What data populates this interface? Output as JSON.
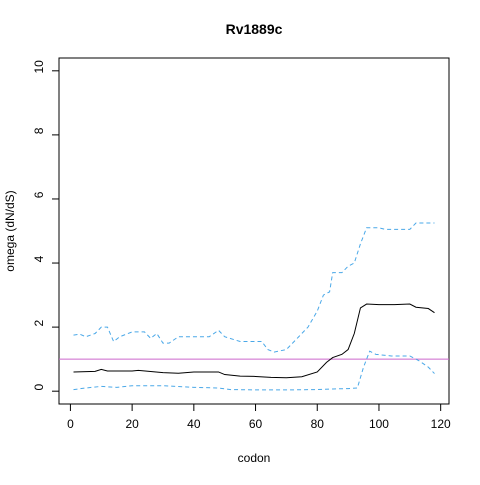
{
  "chart_data": {
    "type": "line",
    "title": "Rv1889c",
    "xlabel": "codon",
    "ylabel": "omega (dN/dS)",
    "xlim": [
      -3.7,
      122.7
    ],
    "ylim": [
      -0.4,
      10.4
    ],
    "xticks": [
      0,
      20,
      40,
      60,
      80,
      100,
      120
    ],
    "yticks": [
      0,
      2,
      4,
      6,
      8,
      10
    ],
    "hline": 1,
    "hline_color": "#cc66cc",
    "series": [
      {
        "color": "#000000",
        "dashed": false,
        "x": [
          1,
          8,
          10,
          12,
          20,
          22,
          30,
          35,
          40,
          48,
          50,
          55,
          60,
          65,
          70,
          75,
          80,
          83,
          85,
          88,
          90,
          92,
          94,
          96,
          100,
          105,
          110,
          112,
          116,
          118
        ],
        "values": [
          0.6,
          0.62,
          0.68,
          0.63,
          0.63,
          0.65,
          0.58,
          0.56,
          0.6,
          0.6,
          0.52,
          0.47,
          0.46,
          0.43,
          0.42,
          0.45,
          0.6,
          0.9,
          1.05,
          1.15,
          1.3,
          1.8,
          2.6,
          2.72,
          2.7,
          2.7,
          2.72,
          2.62,
          2.58,
          2.45
        ]
      },
      {
        "color": "#4aa8e8",
        "dashed": true,
        "x": [
          1,
          3,
          5,
          8,
          10,
          12,
          14,
          16,
          20,
          24,
          26,
          28,
          30,
          32,
          35,
          45,
          48,
          50,
          55,
          62,
          64,
          66,
          70,
          74,
          77,
          80,
          82,
          84,
          85,
          88,
          90,
          92,
          94,
          96,
          100,
          102,
          110,
          112,
          118
        ],
        "values": [
          1.75,
          1.78,
          1.7,
          1.8,
          2.0,
          2.0,
          1.55,
          1.7,
          1.85,
          1.85,
          1.65,
          1.8,
          1.5,
          1.5,
          1.7,
          1.7,
          1.9,
          1.7,
          1.55,
          1.55,
          1.3,
          1.22,
          1.3,
          1.7,
          2.0,
          2.5,
          3.0,
          3.1,
          3.7,
          3.7,
          3.9,
          4.0,
          4.6,
          5.1,
          5.1,
          5.05,
          5.05,
          5.25,
          5.25
        ]
      },
      {
        "color": "#4aa8e8",
        "dashed": true,
        "x": [
          1,
          5,
          10,
          15,
          20,
          30,
          40,
          48,
          52,
          60,
          70,
          80,
          85,
          90,
          93,
          95,
          97,
          99,
          104,
          110,
          113,
          116,
          118
        ],
        "values": [
          0.05,
          0.1,
          0.15,
          0.12,
          0.17,
          0.17,
          0.12,
          0.1,
          0.05,
          0.04,
          0.04,
          0.05,
          0.07,
          0.08,
          0.1,
          0.75,
          1.25,
          1.15,
          1.1,
          1.1,
          0.95,
          0.75,
          0.55
        ]
      }
    ]
  }
}
